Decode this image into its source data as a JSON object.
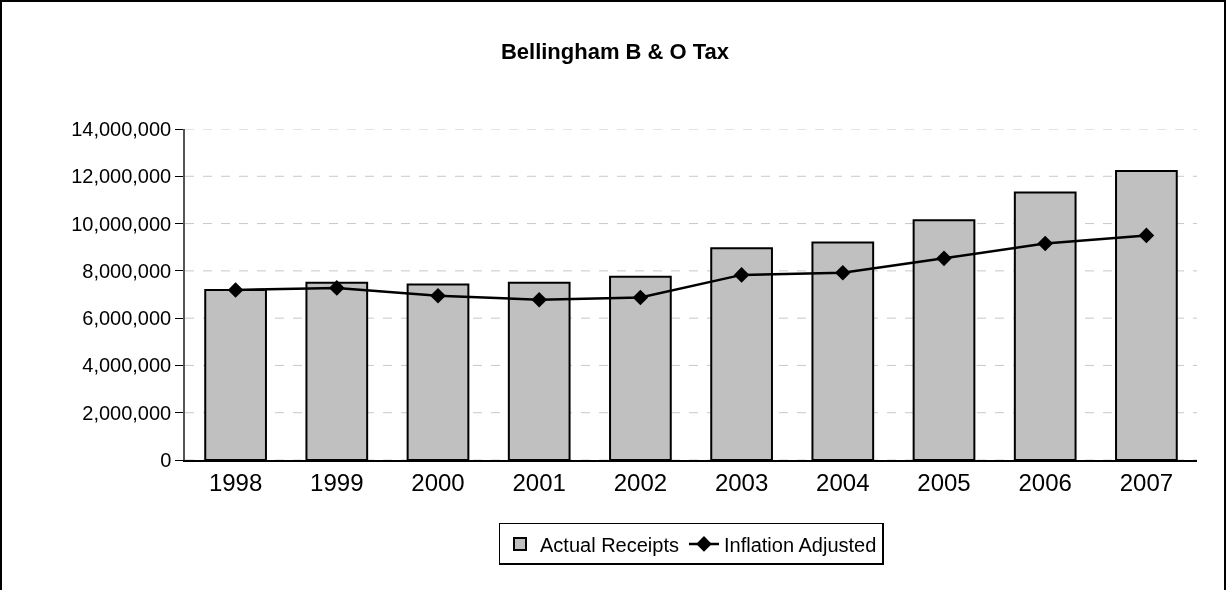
{
  "chart_data": {
    "type": "bar",
    "title": "Bellingham B & O Tax",
    "categories": [
      "1998",
      "1999",
      "2000",
      "2001",
      "2002",
      "2003",
      "2004",
      "2005",
      "2006",
      "2007"
    ],
    "series": [
      {
        "name": "Actual Receipts",
        "color": "#c0c0c0",
        "values": [
          7190000,
          7500000,
          7420000,
          7500000,
          7750000,
          8960000,
          9200000,
          10140000,
          11310000,
          12220000
        ]
      },
      {
        "name": "Inflation Adjusted",
        "type": "line",
        "color": "#000000",
        "marker": "diamond",
        "line_style": "solid",
        "values": [
          7190000,
          7280000,
          6950000,
          6780000,
          6870000,
          7830000,
          7920000,
          8530000,
          9160000,
          9500000
        ]
      }
    ],
    "ylim": [
      0,
      14000000
    ],
    "yticks": [
      {
        "value": 0,
        "label": "0"
      },
      {
        "value": 2000000,
        "label": "2,000,000"
      },
      {
        "value": 4000000,
        "label": "4,000,000"
      },
      {
        "value": 6000000,
        "label": "6,000,000"
      },
      {
        "value": 8000000,
        "label": "8,000,000"
      },
      {
        "value": 10000000,
        "label": "10,000,000"
      },
      {
        "value": 12000000,
        "label": "12,000,000"
      },
      {
        "value": 14000000,
        "label": "14,000,000"
      }
    ],
    "grid": "y",
    "legend": "bottom"
  }
}
